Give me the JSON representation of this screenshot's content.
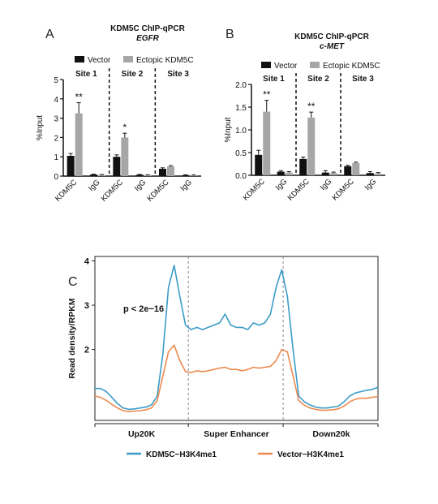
{
  "panels": {
    "A": {
      "label": "A"
    },
    "B": {
      "label": "B"
    },
    "C": {
      "label": "C"
    }
  },
  "chart_data": [
    {
      "type": "bar",
      "title": "KDM5C ChIP-qPCR",
      "subtitle": "EGFR",
      "ylabel": "%Input",
      "ylim": [
        0,
        5
      ],
      "yticks": [
        0,
        1,
        2,
        3,
        4,
        5
      ],
      "sites": [
        "Site 1",
        "Site 2",
        "Site 3"
      ],
      "categories": [
        "KDM5C",
        "IgG",
        "KDM5C",
        "IgG",
        "KDM5C",
        "IgG"
      ],
      "legend": [
        "Vector",
        "Ectopic KDM5C"
      ],
      "series": [
        {
          "name": "Vector",
          "color": "#111111",
          "values": [
            1.05,
            0.08,
            1.0,
            0.07,
            0.38,
            0.05
          ],
          "errors": [
            0.12,
            0.02,
            0.1,
            0.02,
            0.05,
            0.02
          ]
        },
        {
          "name": "Ectopic KDM5C",
          "color": "#a6a6a6",
          "values": [
            3.25,
            0.06,
            2.0,
            0.05,
            0.5,
            0.04
          ],
          "errors": [
            0.55,
            0.02,
            0.22,
            0.02,
            0.04,
            0.02
          ]
        }
      ],
      "significance": [
        "**",
        "",
        "*",
        "",
        "",
        ""
      ]
    },
    {
      "type": "bar",
      "title": "KDM5C ChIP-qPCR",
      "subtitle": "c-MET",
      "ylabel": "%Input",
      "ylim": [
        0,
        2.0
      ],
      "yticks": [
        "0.0",
        "0.5",
        "1.0",
        "1.5",
        "2.0"
      ],
      "sites": [
        "Site 1",
        "Site 2",
        "Site 3"
      ],
      "categories": [
        "KDM5C",
        "IgG",
        "KDM5C",
        "IgG",
        "KDM5C",
        "IgG"
      ],
      "legend": [
        "Vector",
        "Ectopic KDM5C"
      ],
      "series": [
        {
          "name": "Vector",
          "color": "#111111",
          "values": [
            0.45,
            0.08,
            0.36,
            0.06,
            0.2,
            0.05
          ],
          "errors": [
            0.1,
            0.02,
            0.04,
            0.04,
            0.02,
            0.03
          ]
        },
        {
          "name": "Ectopic KDM5C",
          "color": "#a6a6a6",
          "values": [
            1.4,
            0.06,
            1.27,
            0.05,
            0.27,
            0.04
          ],
          "errors": [
            0.25,
            0.02,
            0.12,
            0.02,
            0.02,
            0.02
          ]
        }
      ],
      "significance": [
        "**",
        "",
        "**",
        "",
        "",
        ""
      ]
    },
    {
      "type": "line",
      "ylabel": "Read density/RPKM",
      "yticks": [
        2,
        3,
        4
      ],
      "ylim": [
        0.4,
        4.1
      ],
      "xlabels": [
        "Up20K",
        "Super Enhancer",
        "Down20k"
      ],
      "annotation": "p < 2e−16",
      "series": [
        {
          "name": "KDM5C−H3K4me1",
          "color": "#3a9cc7",
          "x": [
            0,
            0.02,
            0.04,
            0.06,
            0.08,
            0.1,
            0.12,
            0.14,
            0.16,
            0.18,
            0.2,
            0.22,
            0.24,
            0.26,
            0.28,
            0.3,
            0.32,
            0.34,
            0.36,
            0.38,
            0.4,
            0.42,
            0.44,
            0.46,
            0.48,
            0.5,
            0.52,
            0.54,
            0.56,
            0.58,
            0.6,
            0.62,
            0.64,
            0.66,
            0.68,
            0.7,
            0.72,
            0.74,
            0.76,
            0.78,
            0.8,
            0.82,
            0.84,
            0.86,
            0.88,
            0.9,
            0.92,
            0.94,
            0.96,
            0.98,
            1.0
          ],
          "y": [
            1.12,
            1.12,
            1.05,
            0.92,
            0.78,
            0.68,
            0.65,
            0.66,
            0.68,
            0.7,
            0.75,
            0.95,
            1.9,
            3.4,
            3.9,
            3.2,
            2.55,
            2.45,
            2.5,
            2.45,
            2.5,
            2.55,
            2.6,
            2.8,
            2.55,
            2.5,
            2.5,
            2.45,
            2.6,
            2.55,
            2.6,
            2.8,
            3.4,
            3.8,
            3.2,
            2.0,
            0.95,
            0.82,
            0.75,
            0.7,
            0.68,
            0.68,
            0.7,
            0.72,
            0.82,
            0.95,
            1.02,
            1.05,
            1.08,
            1.1,
            1.15
          ]
        },
        {
          "name": "Vector−H3K4me1",
          "color": "#ec8a50",
          "x": [
            0,
            0.02,
            0.04,
            0.06,
            0.08,
            0.1,
            0.12,
            0.14,
            0.16,
            0.18,
            0.2,
            0.22,
            0.24,
            0.26,
            0.28,
            0.3,
            0.32,
            0.34,
            0.36,
            0.38,
            0.4,
            0.42,
            0.44,
            0.46,
            0.48,
            0.5,
            0.52,
            0.54,
            0.56,
            0.58,
            0.6,
            0.62,
            0.64,
            0.66,
            0.68,
            0.7,
            0.72,
            0.74,
            0.76,
            0.78,
            0.8,
            0.82,
            0.84,
            0.86,
            0.88,
            0.9,
            0.92,
            0.94,
            0.96,
            0.98,
            1.0
          ],
          "y": [
            0.95,
            0.92,
            0.85,
            0.76,
            0.68,
            0.62,
            0.6,
            0.61,
            0.62,
            0.64,
            0.68,
            0.85,
            1.4,
            1.95,
            2.1,
            1.75,
            1.5,
            1.48,
            1.52,
            1.5,
            1.52,
            1.55,
            1.58,
            1.6,
            1.55,
            1.55,
            1.52,
            1.55,
            1.6,
            1.58,
            1.6,
            1.62,
            1.75,
            2.0,
            1.95,
            1.4,
            0.85,
            0.74,
            0.68,
            0.65,
            0.63,
            0.63,
            0.64,
            0.66,
            0.72,
            0.82,
            0.88,
            0.9,
            0.9,
            0.92,
            0.94
          ]
        }
      ]
    }
  ]
}
